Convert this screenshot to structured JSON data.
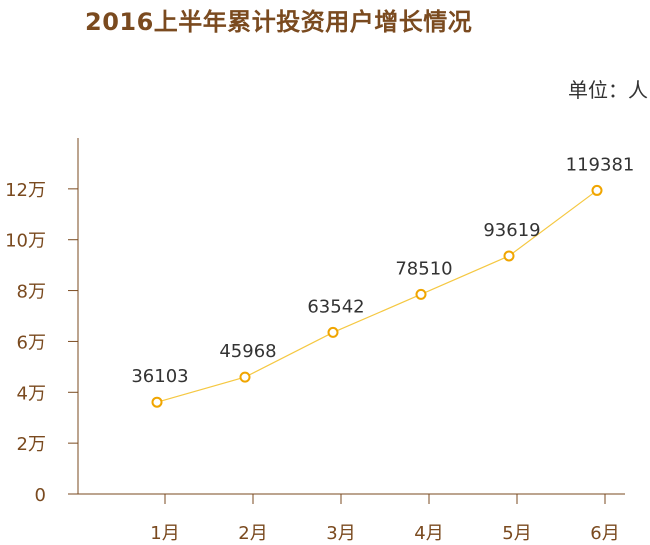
{
  "title": "2016上半年累计投资用户增长情况",
  "unit_label": "单位：人",
  "chart_data": {
    "type": "line",
    "title": "2016上半年累计投资用户增长情况",
    "unit": "单位：人",
    "categories": [
      "1月",
      "2月",
      "3月",
      "4月",
      "5月",
      "6月"
    ],
    "series": [
      {
        "values": [
          36103,
          45968,
          63542,
          78510,
          93619,
          119381
        ]
      }
    ],
    "data_labels": [
      "36103",
      "45968",
      "63542",
      "78510",
      "93619",
      "119381"
    ],
    "y_ticks": [
      {
        "value": 0,
        "label": "0"
      },
      {
        "value": 20000,
        "label": "2万"
      },
      {
        "value": 40000,
        "label": "4万"
      },
      {
        "value": 60000,
        "label": "6万"
      },
      {
        "value": 80000,
        "label": "8万"
      },
      {
        "value": 100000,
        "label": "10万"
      },
      {
        "value": 120000,
        "label": "12万"
      }
    ],
    "ylim": [
      0,
      140000
    ],
    "grid": false,
    "colors": {
      "line": "#f5c842",
      "marker": "#f0a500",
      "axis": "#7a4a1f",
      "title": "#7a4a1f"
    }
  }
}
